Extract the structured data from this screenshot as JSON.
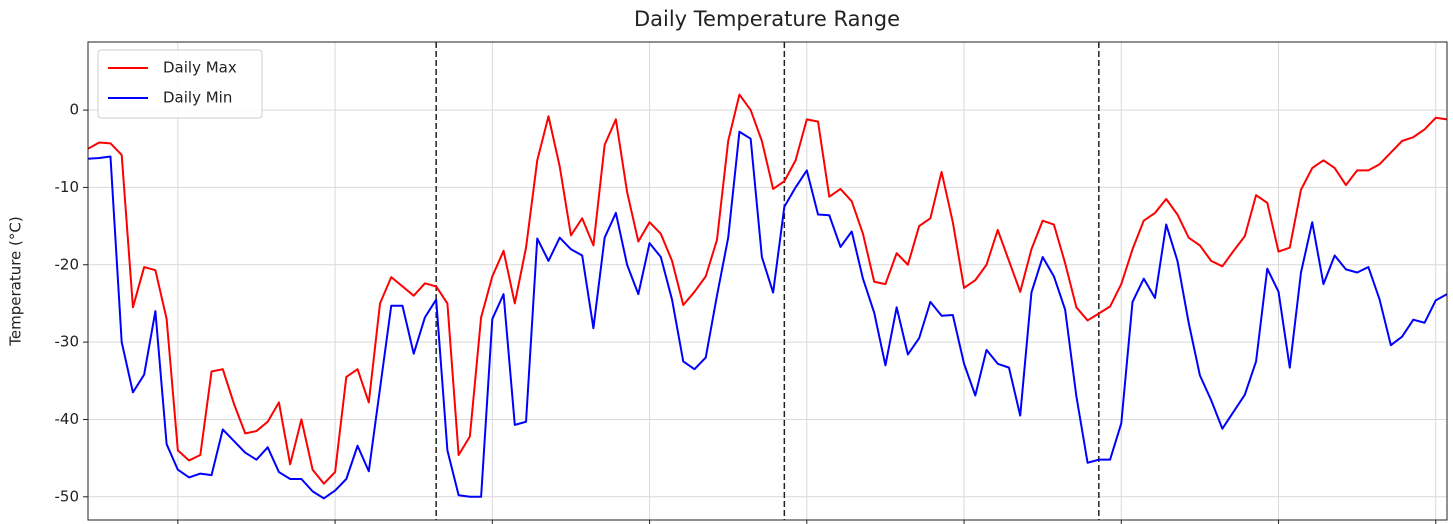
{
  "chart_data": {
    "type": "line",
    "title": "Daily Temperature Range",
    "ylabel": "Temperature (°C)",
    "xlim": [
      0,
      121
    ],
    "xticks": [
      8,
      22,
      36,
      50,
      64,
      78,
      92,
      106,
      120
    ],
    "ylim": [
      -53,
      8.8
    ],
    "yticks": [
      -50,
      -40,
      -30,
      -20,
      -10,
      0
    ],
    "grid": true,
    "legend": "upper left",
    "vertical_lines": [
      31,
      62,
      90
    ],
    "series": [
      {
        "name": "Daily Max",
        "color": "#ff0000",
        "values": [
          -5,
          -4.2,
          -4.3,
          -5.8,
          -25.5,
          -20.3,
          -20.7,
          -27,
          -44,
          -45.3,
          -44.6,
          -33.8,
          -33.5,
          -38,
          -41.8,
          -41.5,
          -40.3,
          -37.8,
          -45.8,
          -40,
          -46.5,
          -48.3,
          -46.8,
          -34.5,
          -33.5,
          -37.8,
          -25,
          -21.6,
          -22.8,
          -24,
          -22.4,
          -22.8,
          -25,
          -44.6,
          -42.2,
          -26.8,
          -21.5,
          -18.2,
          -25,
          -17.8,
          -6.5,
          -0.8,
          -7.3,
          -16.2,
          -14,
          -17.5,
          -4.5,
          -1.2,
          -10.6,
          -17,
          -14.5,
          -16,
          -19.5,
          -25.2,
          -23.5,
          -21.5,
          -16.8,
          -4,
          2,
          0,
          -4,
          -10.2,
          -9.2,
          -6.5,
          -1.2,
          -1.5,
          -11.2,
          -10.2,
          -11.8,
          -16,
          -22.2,
          -22.5,
          -18.5,
          -20,
          -15,
          -14,
          -8,
          -14.5,
          -23,
          -22,
          -20,
          -15.5,
          -19.5,
          -23.5,
          -18,
          -14.3,
          -14.8,
          -19.8,
          -25.5,
          -27.2,
          -26.3,
          -25.4,
          -22.5,
          -18,
          -14.3,
          -13.3,
          -11.5,
          -13.5,
          -16.5,
          -17.5,
          -19.5,
          -20.2,
          -18.2,
          -16.3,
          -11,
          -12,
          -18.3,
          -17.8,
          -10.3,
          -7.5,
          -6.5,
          -7.5,
          -9.7,
          -7.8,
          -7.8,
          -7,
          -5.5,
          -4,
          -3.5,
          -2.5,
          -1,
          -1.2
        ]
      },
      {
        "name": "Daily Min",
        "color": "#0000ff",
        "values": [
          -6.3,
          -6.2,
          -6,
          -30,
          -36.5,
          -34.2,
          -26,
          -43.2,
          -46.5,
          -47.5,
          -47,
          -47.2,
          -41.3,
          -42.8,
          -44.3,
          -45.2,
          -43.6,
          -46.8,
          -47.7,
          -47.7,
          -49.3,
          -50.2,
          -49.2,
          -47.7,
          -43.4,
          -46.7,
          -36,
          -25.3,
          -25.3,
          -31.5,
          -26.8,
          -24.5,
          -44,
          -49.8,
          -50,
          -50,
          -27,
          -23.8,
          -40.7,
          -40.3,
          -16.6,
          -19.5,
          -16.5,
          -18,
          -18.8,
          -28.2,
          -16.5,
          -13.3,
          -20,
          -23.8,
          -17.2,
          -19,
          -24.5,
          -32.5,
          -33.5,
          -32,
          -24,
          -16.5,
          -2.8,
          -3.7,
          -19,
          -23.6,
          -12.5,
          -10,
          -7.8,
          -13.5,
          -13.6,
          -17.7,
          -15.7,
          -21.8,
          -26.2,
          -33,
          -25.5,
          -31.6,
          -29.5,
          -24.8,
          -26.6,
          -26.5,
          -32.8,
          -36.9,
          -31,
          -32.8,
          -33.3,
          -39.5,
          -23.6,
          -19,
          -21.5,
          -25.8,
          -37,
          -45.6,
          -45.2,
          -45.2,
          -40.5,
          -24.8,
          -21.8,
          -24.3,
          -14.8,
          -19.5,
          -27.5,
          -34.3,
          -37.5,
          -41.2,
          -39,
          -36.8,
          -32.5,
          -20.5,
          -23.5,
          -33.3,
          -21,
          -14.5,
          -22.5,
          -18.8,
          -20.6,
          -21,
          -20.3,
          -24.5,
          -30.4,
          -29.3,
          -27.1,
          -27.5,
          -24.6,
          -23.8
        ]
      }
    ]
  }
}
